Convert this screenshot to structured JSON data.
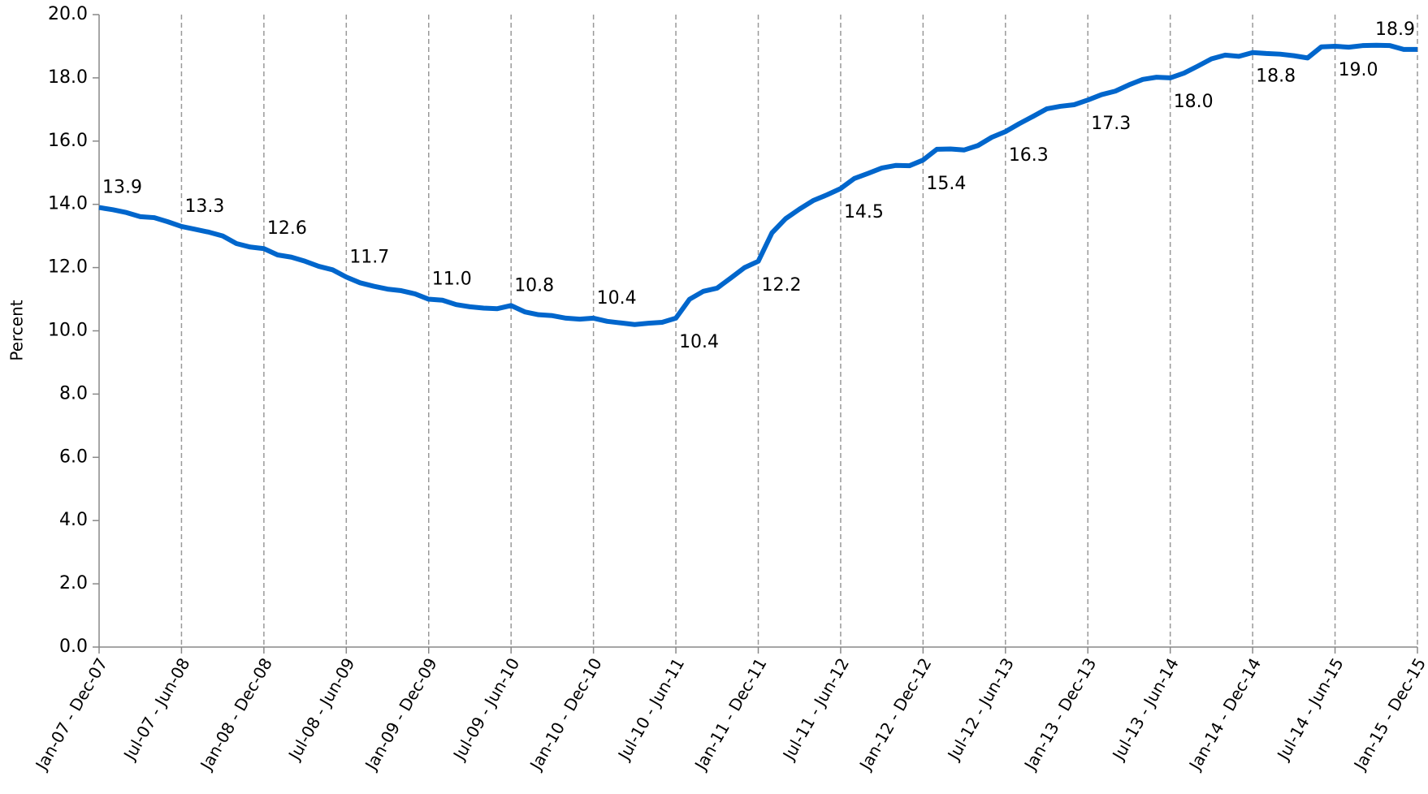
{
  "chart_data": {
    "type": "line",
    "y_label": "Percent",
    "categories": [
      "Jan-07 - Dec-07",
      null,
      null,
      null,
      null,
      null,
      "Jul-07 - Jun-08",
      null,
      null,
      null,
      null,
      null,
      "Jan-08 - Dec-08",
      null,
      null,
      null,
      null,
      null,
      "Jul-08 - Jun-09",
      null,
      null,
      null,
      null,
      null,
      "Jan-09 - Dec-09",
      null,
      null,
      null,
      null,
      null,
      "Jul-09 - Jun-10",
      null,
      null,
      null,
      null,
      null,
      "Jan-10 - Dec-10",
      null,
      null,
      null,
      null,
      null,
      "Jul-10 - Jun-11",
      null,
      null,
      null,
      null,
      null,
      "Jan-11 - Dec-11",
      null,
      null,
      null,
      null,
      null,
      "Jul-11 - Jun-12",
      null,
      null,
      null,
      null,
      null,
      "Jan-12 - Dec-12",
      null,
      null,
      null,
      null,
      null,
      "Jul-12 - Jun-13",
      null,
      null,
      null,
      null,
      null,
      "Jan-13 - Dec-13",
      null,
      null,
      null,
      null,
      null,
      "Jul-13 - Jun-14",
      null,
      null,
      null,
      null,
      null,
      "Jan-14 - Dec-14",
      null,
      null,
      null,
      null,
      null,
      "Jul-14 - Jun-15",
      null,
      null,
      null,
      null,
      null,
      "Jan-15 - Dec-15"
    ],
    "series": [
      {
        "name": "Percent",
        "color": "#0066cc",
        "values": [
          13.9,
          13.83,
          13.74,
          13.61,
          13.58,
          13.45,
          13.3,
          13.21,
          13.12,
          13.0,
          12.76,
          12.65,
          12.6,
          12.4,
          12.33,
          12.2,
          12.04,
          11.93,
          11.7,
          11.52,
          11.41,
          11.32,
          11.27,
          11.17,
          11.0,
          10.97,
          10.83,
          10.76,
          10.72,
          10.7,
          10.8,
          10.6,
          10.51,
          10.48,
          10.4,
          10.37,
          10.4,
          10.3,
          10.25,
          10.2,
          10.24,
          10.27,
          10.4,
          11.0,
          11.25,
          11.35,
          11.67,
          12.0,
          12.2,
          13.1,
          13.55,
          13.85,
          14.12,
          14.3,
          14.5,
          14.82,
          14.98,
          15.15,
          15.23,
          15.22,
          15.4,
          15.74,
          15.75,
          15.72,
          15.86,
          16.12,
          16.3,
          16.55,
          16.78,
          17.02,
          17.1,
          17.15,
          17.3,
          17.47,
          17.58,
          17.78,
          17.95,
          18.02,
          18.0,
          18.15,
          18.37,
          18.6,
          18.72,
          18.68,
          18.8,
          18.77,
          18.75,
          18.7,
          18.63,
          18.98,
          19.0,
          18.97,
          19.02,
          19.03,
          19.02,
          18.9,
          18.9
        ],
        "value_labels": [
          "13.9",
          null,
          null,
          null,
          null,
          null,
          "13.3",
          null,
          null,
          null,
          null,
          null,
          "12.6",
          null,
          null,
          null,
          null,
          null,
          "11.7",
          null,
          null,
          null,
          null,
          null,
          "11.0",
          null,
          null,
          null,
          null,
          null,
          "10.8",
          null,
          null,
          null,
          null,
          null,
          "10.4",
          null,
          null,
          null,
          null,
          null,
          "10.4",
          null,
          null,
          null,
          null,
          null,
          "12.2",
          null,
          null,
          null,
          null,
          null,
          "14.5",
          null,
          null,
          null,
          null,
          null,
          "15.4",
          null,
          null,
          null,
          null,
          null,
          "16.3",
          null,
          null,
          null,
          null,
          null,
          "17.3",
          null,
          null,
          null,
          null,
          null,
          "18.0",
          null,
          null,
          null,
          null,
          null,
          "18.8",
          null,
          null,
          null,
          null,
          null,
          "19.0",
          null,
          null,
          null,
          null,
          null,
          "18.9"
        ]
      }
    ],
    "ylim": [
      0,
      20
    ],
    "yticks": [
      {
        "value": 0,
        "label": "0.0"
      },
      {
        "value": 2,
        "label": "2.0"
      },
      {
        "value": 4,
        "label": "4.0"
      },
      {
        "value": 6,
        "label": "6.0"
      },
      {
        "value": 8,
        "label": "8.0"
      },
      {
        "value": 10,
        "label": "10.0"
      },
      {
        "value": 12,
        "label": "12.0"
      },
      {
        "value": 14,
        "label": "14.0"
      },
      {
        "value": 16,
        "label": "16.0"
      },
      {
        "value": 18,
        "label": "18.0"
      },
      {
        "value": 20,
        "label": "20.0"
      }
    ],
    "x_grid": true
  }
}
